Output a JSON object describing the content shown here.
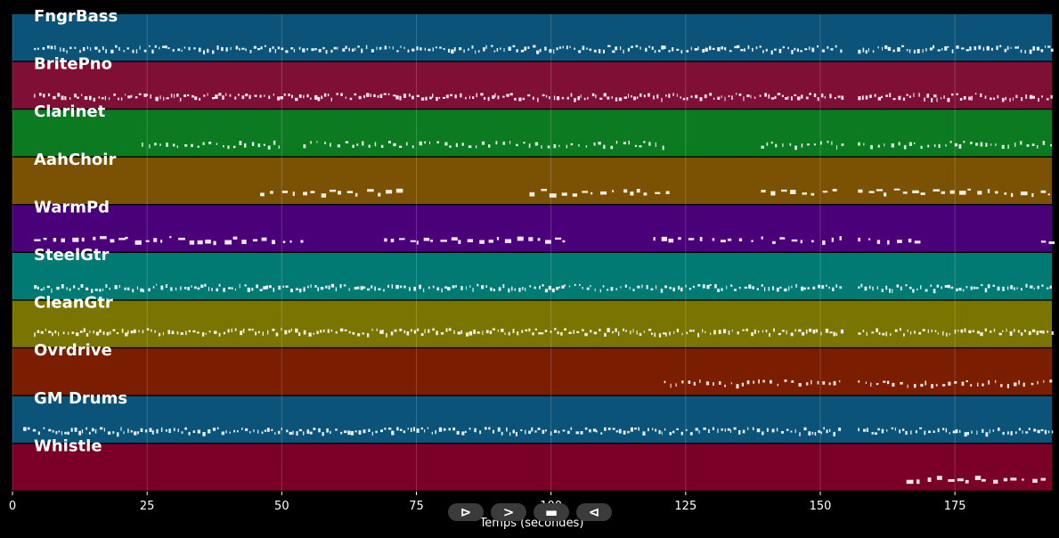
{
  "axis": {
    "title": "Temps (secondes)",
    "ticks": [
      0,
      25,
      50,
      75,
      100,
      125,
      150,
      175
    ],
    "xlim": [
      0,
      193
    ]
  },
  "tracks": [
    {
      "name": "FngrBass",
      "color": "#0b5378",
      "density": "dense",
      "segments": [
        [
          4,
          154
        ],
        [
          157,
          193
        ]
      ]
    },
    {
      "name": "BritePno",
      "color": "#800f35",
      "density": "dense",
      "segments": [
        [
          4,
          154
        ],
        [
          157,
          193
        ]
      ]
    },
    {
      "name": "Clarinet",
      "color": "#0b7a21",
      "density": "medium",
      "segments": [
        [
          24,
          50
        ],
        [
          54,
          121
        ],
        [
          139,
          154
        ],
        [
          157,
          193
        ]
      ]
    },
    {
      "name": "AahChoir",
      "color": "#7b5103",
      "density": "sparse",
      "segments": [
        [
          46,
          73
        ],
        [
          96,
          123
        ],
        [
          139,
          154
        ],
        [
          157,
          193
        ]
      ]
    },
    {
      "name": "WarmPd",
      "color": "#4a0079",
      "density": "sparse",
      "segments": [
        [
          4,
          55
        ],
        [
          69,
          104
        ],
        [
          119,
          154
        ],
        [
          157,
          168
        ],
        [
          191,
          193
        ]
      ]
    },
    {
      "name": "SteelGtr",
      "color": "#007a73",
      "density": "dense",
      "segments": [
        [
          4,
          154
        ],
        [
          157,
          193
        ]
      ]
    },
    {
      "name": "CleanGtr",
      "color": "#7a7500",
      "density": "dense",
      "segments": [
        [
          4,
          154
        ],
        [
          157,
          193
        ]
      ]
    },
    {
      "name": "Ovrdrive",
      "color": "#7a1d00",
      "density": "medium",
      "segments": [
        [
          121,
          154
        ],
        [
          157,
          193
        ]
      ]
    },
    {
      "name": "GM Drums",
      "color": "#0b5378",
      "density": "dense",
      "segments": [
        [
          2,
          154
        ],
        [
          157,
          193
        ]
      ]
    },
    {
      "name": "Whistle",
      "color": "#7a0027",
      "density": "sparse",
      "segments": [
        [
          166,
          193
        ]
      ]
    }
  ],
  "controls": [
    {
      "name": "play-button",
      "glyph": "⊳"
    },
    {
      "name": "forward-button",
      "glyph": ">"
    },
    {
      "name": "stop-button",
      "glyph": "▬"
    },
    {
      "name": "rewind-button",
      "glyph": "⊲"
    }
  ]
}
